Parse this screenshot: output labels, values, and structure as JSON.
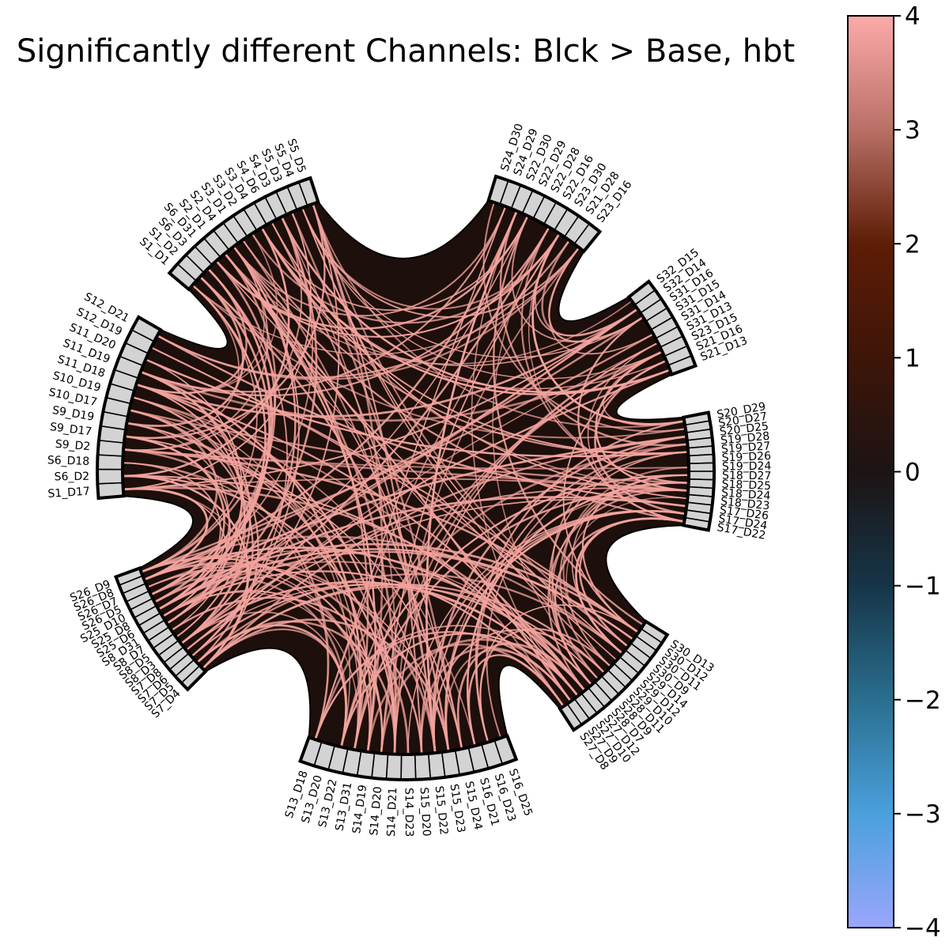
{
  "title": "Significantly different Channels: Blck > Base, hbt",
  "diagram": {
    "type": "connectivity-circle",
    "background_color": "#1d0f0b",
    "node_fill": "#d3d3d3",
    "edge_color": "#f2a39d",
    "groups": [
      {
        "labels": [
          "S1_D1",
          "S1_D2",
          "S6_D3",
          "S6_D31",
          "S2_D1",
          "S2_D4",
          "S3_D1",
          "S3_D2",
          "S3_D4",
          "S4_D6",
          "S4_D3",
          "S5_D3",
          "S5_D4",
          "S5_D5"
        ]
      },
      {
        "labels": [
          "S24_D30",
          "S24_D29",
          "S22_D30",
          "S22_D29",
          "S22_D28",
          "S22_D16",
          "S23_D30",
          "S21_D28",
          "S23_D16"
        ]
      },
      {
        "labels": [
          "S32_D15",
          "S32_D14",
          "S31_D16",
          "S31_D15",
          "S31_D14",
          "S31_D13",
          "S23_D15",
          "S21_D16",
          "S21_D13"
        ]
      },
      {
        "labels": [
          "S20_D29",
          "S20_D27",
          "S20_D25",
          "S19_D28",
          "S19_D27",
          "S19_D26",
          "S19_D24",
          "S18_D27",
          "S18_D25",
          "S18_D24",
          "S18_D23",
          "S17_D26",
          "S17_D24",
          "S17_D22"
        ]
      },
      {
        "labels": [
          "S30_D13",
          "S30_D12",
          "S30_D11",
          "S30_D9",
          "S29_D14",
          "S29_D12",
          "S29_D10",
          "S28_D11",
          "S28_D9",
          "S28_D7",
          "S27_D12",
          "S27_D10",
          "S27_D9",
          "S27_D8"
        ]
      },
      {
        "labels": [
          "S16_D25",
          "S16_D23",
          "S16_D21",
          "S15_D24",
          "S15_D23",
          "S15_D22",
          "S15_D20",
          "S14_D23",
          "S14_D21",
          "S14_D20",
          "S14_D19",
          "S13_D31",
          "S13_D22",
          "S13_D20",
          "S13_D18"
        ]
      },
      {
        "labels": [
          "S7_D4",
          "S7_D5",
          "S7_D6",
          "S7_D8",
          "S8_D3",
          "S8_D5",
          "S8_D7",
          "S8_D31",
          "S25_D6",
          "S25_D8",
          "S25_D10",
          "S26_D5",
          "S26_D7",
          "S26_D8",
          "S26_D9"
        ]
      },
      {
        "labels": [
          "S1_D17",
          "S6_D2",
          "S6_D18",
          "S9_D2",
          "S9_D17",
          "S9_D19",
          "S10_D17",
          "S10_D19",
          "S11_D18",
          "S11_D19",
          "S11_D20",
          "S12_D19",
          "S12_D21"
        ]
      }
    ]
  },
  "colorbar": {
    "min": -4,
    "max": 4,
    "ticks": [
      "4",
      "3",
      "2",
      "1",
      "0",
      "−1",
      "−2",
      "−3",
      "−4"
    ],
    "colors": [
      "#9aa6fd",
      "#4aa0dc",
      "#2a6e8f",
      "#163548",
      "#1c1414",
      "#3e1508",
      "#5e1d06",
      "#b87066",
      "#fdaaaa"
    ]
  }
}
